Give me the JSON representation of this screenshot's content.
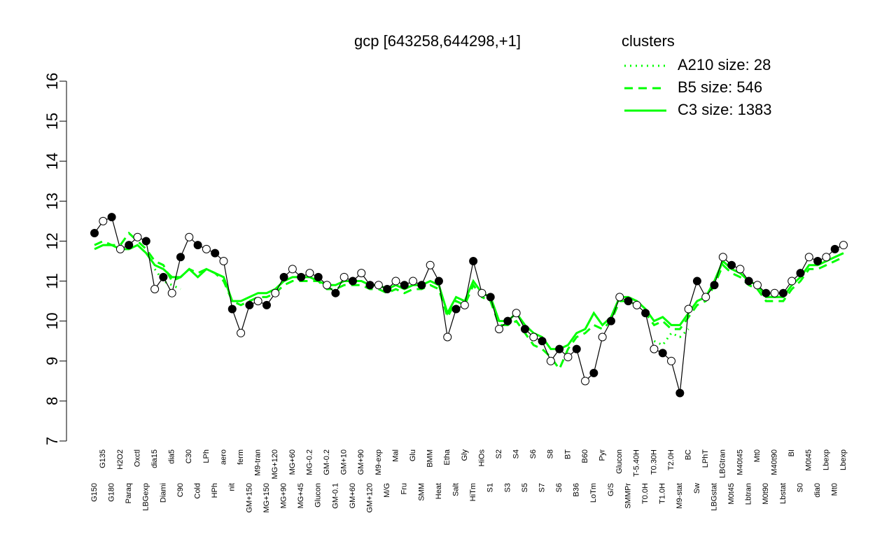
{
  "chart_data": {
    "type": "line",
    "title": "gcp [643258,644298,+1]",
    "legend_title": "clusters",
    "legend_position": "top-right",
    "ylim": [
      7,
      16
    ],
    "yticks": [
      7,
      8,
      9,
      10,
      11,
      12,
      13,
      14,
      15,
      16
    ],
    "categories": [
      "G150",
      "G135",
      "G180",
      "H2O2",
      "Paraq",
      "Oxctl",
      "LBGexp",
      "dia15",
      "Diami",
      "dia5",
      "C90",
      "C30",
      "Cold",
      "LPh",
      "HPh",
      "aero",
      "nit",
      "ferm",
      "GM+150",
      "M9-tran",
      "MG+150",
      "MG+120",
      "MG+90",
      "MG+60",
      "MG+45",
      "MG-0.2",
      "Glucon",
      "GM-0.2",
      "GM-0.1",
      "GM+10",
      "GM+60",
      "GM+90",
      "GM+120",
      "M9-exp",
      "M/G",
      "Mal",
      "Fru",
      "Glu",
      "SMM",
      "BMM",
      "Heat",
      "Etha",
      "Salt",
      "Gly",
      "HiTm",
      "HiOs",
      "S1",
      "S2",
      "S3",
      "S4",
      "S5",
      "S6",
      "S7",
      "S8",
      "S6",
      "BT",
      "B36",
      "B60",
      "LoTm",
      "Pyr",
      "G/S",
      "Glucon",
      "SMMPr",
      "T-5.40H",
      "T0.0H",
      "T0.30H",
      "T1.0H",
      "T2.0H",
      "M9-stat",
      "BC",
      "Sw",
      "LPhT",
      "LBGstat",
      "LBGtran",
      "M0t45",
      "M40t45",
      "Lbtran",
      "Mt0",
      "M0t90",
      "M40t90",
      "Lbstat",
      "BI",
      "S0",
      "M0t45",
      "dia0",
      "Lbexp",
      "Mt0",
      "Lbexp"
    ],
    "values": [
      12.2,
      12.5,
      12.6,
      11.8,
      11.9,
      12.1,
      12.0,
      10.8,
      11.1,
      10.7,
      11.6,
      12.1,
      11.9,
      11.8,
      11.7,
      11.5,
      10.3,
      9.7,
      10.4,
      10.5,
      10.4,
      10.7,
      11.1,
      11.3,
      11.1,
      11.2,
      11.1,
      10.9,
      10.7,
      11.1,
      11.0,
      11.2,
      10.9,
      10.9,
      10.8,
      11.0,
      10.9,
      11.0,
      10.9,
      11.4,
      11.0,
      9.6,
      10.3,
      10.4,
      11.5,
      10.7,
      10.6,
      9.8,
      10.0,
      10.2,
      9.8,
      9.6,
      9.5,
      9.0,
      9.3,
      9.1,
      9.3,
      8.5,
      8.7,
      9.6,
      10.0,
      10.6,
      10.5,
      10.4,
      10.2,
      9.3,
      9.2,
      9.0,
      8.2,
      10.3,
      11.0,
      10.6,
      10.9,
      11.6,
      11.4,
      11.3,
      11.0,
      10.9,
      10.7,
      10.7,
      10.7,
      11.0,
      11.2,
      11.6,
      11.5,
      11.6,
      11.8,
      11.9
    ],
    "color": "#000000",
    "series": [
      {
        "name": "A210 size: 28",
        "color": "#00ff00",
        "line_style": "dotted",
        "values": [
          null,
          null,
          null,
          null,
          null,
          null,
          null,
          11.3,
          11.0,
          10.9,
          10.8,
          null,
          null,
          null,
          null,
          null,
          null,
          null,
          null,
          null,
          null,
          null,
          null,
          null,
          null,
          null,
          null,
          null,
          null,
          null,
          null,
          null,
          null,
          null,
          null,
          null,
          null,
          null,
          null,
          null,
          null,
          null,
          null,
          null,
          null,
          null,
          null,
          null,
          null,
          null,
          null,
          null,
          null,
          null,
          null,
          null,
          null,
          null,
          null,
          null,
          null,
          null,
          null,
          null,
          null,
          9.5,
          9.4,
          9.7,
          9.6,
          9.8,
          null,
          null,
          null,
          null,
          null,
          null,
          null,
          null,
          null,
          null,
          null,
          null,
          null,
          null,
          null,
          null,
          null,
          null
        ]
      },
      {
        "name": "B5 size: 546",
        "color": "#00ff00",
        "line_style": "dashed",
        "values": [
          11.9,
          12.0,
          11.9,
          11.9,
          12.2,
          12.0,
          11.8,
          11.5,
          11.4,
          11.0,
          11.1,
          11.3,
          11.2,
          11.3,
          11.2,
          11.0,
          10.5,
          10.4,
          10.5,
          10.6,
          10.6,
          10.7,
          10.9,
          11.0,
          11.0,
          11.0,
          11.0,
          10.8,
          10.8,
          10.9,
          10.9,
          10.9,
          10.8,
          10.8,
          10.7,
          10.8,
          10.7,
          10.8,
          10.8,
          10.9,
          10.8,
          10.1,
          10.5,
          10.4,
          10.9,
          10.6,
          10.5,
          9.9,
          9.9,
          10.0,
          9.7,
          9.4,
          9.3,
          9.1,
          8.8,
          9.3,
          9.6,
          9.7,
          9.9,
          9.8,
          10.0,
          10.5,
          10.5,
          10.4,
          10.2,
          9.9,
          10.0,
          9.8,
          9.8,
          10.1,
          10.4,
          10.5,
          10.9,
          11.4,
          11.2,
          11.1,
          10.9,
          10.8,
          10.5,
          10.5,
          10.5,
          10.8,
          11.0,
          11.3,
          11.3,
          11.4,
          11.5,
          11.6
        ]
      },
      {
        "name": "C3 size: 1383",
        "color": "#00ff00",
        "line_style": "solid",
        "values": [
          11.8,
          11.9,
          11.9,
          11.8,
          11.8,
          11.9,
          11.7,
          11.4,
          11.3,
          11.1,
          11.1,
          11.3,
          11.1,
          11.3,
          11.2,
          11.1,
          10.5,
          10.5,
          10.6,
          10.7,
          10.7,
          10.8,
          11.0,
          11.1,
          11.1,
          11.1,
          11.0,
          10.9,
          10.9,
          11.0,
          11.0,
          11.0,
          10.9,
          10.9,
          10.8,
          10.9,
          10.8,
          10.9,
          10.9,
          11.0,
          10.9,
          10.2,
          10.6,
          10.5,
          11.0,
          10.7,
          10.6,
          10.0,
          10.0,
          10.2,
          9.9,
          9.7,
          9.6,
          9.3,
          9.3,
          9.4,
          9.7,
          9.8,
          10.2,
          9.9,
          10.1,
          10.6,
          10.6,
          10.5,
          10.3,
          10.0,
          10.1,
          9.9,
          9.9,
          10.2,
          10.5,
          10.6,
          11.0,
          11.5,
          11.3,
          11.2,
          11.0,
          10.9,
          10.6,
          10.6,
          10.6,
          10.9,
          11.1,
          11.4,
          11.4,
          11.5,
          11.6,
          11.7
        ]
      }
    ]
  }
}
